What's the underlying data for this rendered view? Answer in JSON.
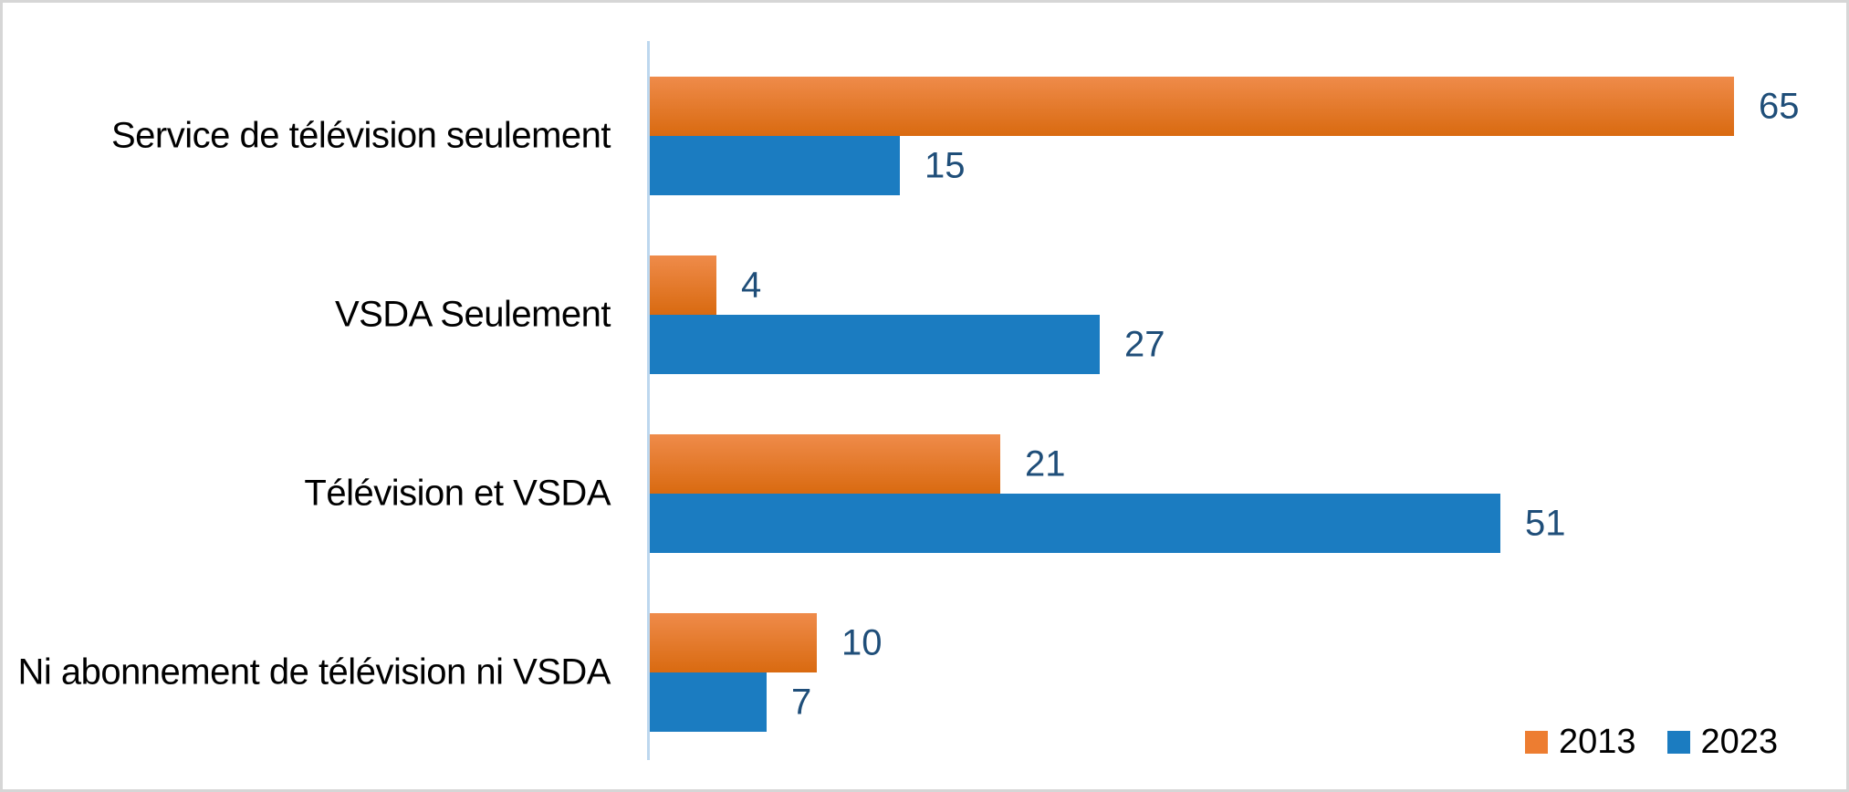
{
  "chart_data": {
    "type": "bar",
    "orientation": "horizontal",
    "title": "",
    "xlabel": "",
    "ylabel": "",
    "grid": false,
    "xlim": [
      0,
      70
    ],
    "legend_position": "bottom-right",
    "categories": [
      "Service de télévision seulement",
      "VSDA Seulement",
      "Télévision et VSDA",
      "Ni abonnement de télévision ni VSDA"
    ],
    "series": [
      {
        "name": "2013",
        "values": [
          65,
          4,
          21,
          10
        ],
        "color": "#ED7D31",
        "gradient_top": "#EF8B4A",
        "gradient_bottom": "#D96A10"
      },
      {
        "name": "2023",
        "values": [
          15,
          27,
          51,
          7
        ],
        "color": "#1B7CC1"
      }
    ],
    "colors": {
      "axis_line": "#BDD7EE",
      "value_label": "#1F4E79",
      "category_label": "#000000",
      "legend_text": "#000000",
      "background": "#FFFFFF",
      "frame_border": "#D6D6D6"
    }
  }
}
